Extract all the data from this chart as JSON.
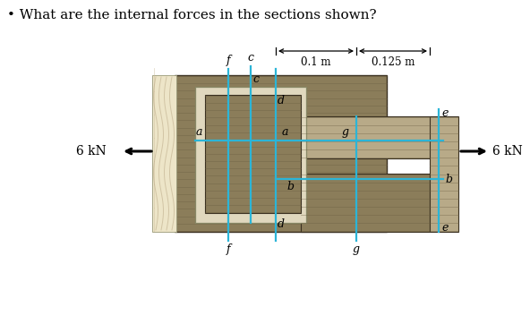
{
  "title": "What are the internal forces in the sections shown?",
  "title_bullet": "• ",
  "force_label": "6 kN",
  "dim1": "0.1 m",
  "dim2": "0.125 m",
  "color_wood_dark": "#8B7D5A",
  "color_wood_mid": "#A09070",
  "color_wood_light": "#B8AA88",
  "color_inner_rect": "#E0D8BE",
  "color_section_line": "#2BB5D8",
  "color_wavy": "#EDE5C8",
  "bg_color": "#FFFFFF",
  "wood_line_color": "#6a5e40",
  "wood_line_alpha": 0.45,
  "wood_line_lw": 0.55
}
